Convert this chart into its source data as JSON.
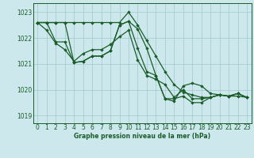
{
  "title": "Graphe pression niveau de la mer (hPa)",
  "bg_color": "#cce8ec",
  "grid_color": "#a0c8cc",
  "line_color": "#1a5c28",
  "xlim": [
    -0.5,
    23.5
  ],
  "ylim": [
    1018.7,
    1023.35
  ],
  "yticks": [
    1019,
    1020,
    1021,
    1022,
    1023
  ],
  "xticks": [
    0,
    1,
    2,
    3,
    4,
    5,
    6,
    7,
    8,
    9,
    10,
    11,
    12,
    13,
    14,
    15,
    16,
    17,
    18,
    19,
    20,
    21,
    22,
    23
  ],
  "series": [
    [
      1022.6,
      1022.6,
      1022.6,
      1022.6,
      1022.6,
      1022.6,
      1022.6,
      1022.6,
      1022.6,
      1022.6,
      1023.0,
      1022.5,
      1021.9,
      1021.3,
      1020.7,
      1020.2,
      1019.9,
      1019.8,
      1019.7,
      1019.7,
      1019.8,
      1019.75,
      1019.75,
      1019.7
    ],
    [
      1022.6,
      1022.3,
      1021.8,
      1021.55,
      1021.1,
      1021.4,
      1021.55,
      1021.55,
      1021.75,
      1022.05,
      1022.3,
      1021.15,
      1020.55,
      1020.4,
      1020.2,
      1019.7,
      1020.0,
      1019.65,
      1019.65,
      1019.7,
      1019.8,
      1019.75,
      1019.85,
      1019.7
    ],
    [
      1022.6,
      1022.6,
      1021.85,
      1021.85,
      1021.05,
      1021.1,
      1021.3,
      1021.3,
      1021.5,
      1022.5,
      1022.65,
      1022.35,
      1021.6,
      1020.55,
      1019.65,
      1019.65,
      1019.75,
      1019.5,
      1019.5,
      1019.7,
      1019.8,
      1019.75,
      1019.85,
      1019.7
    ],
    [
      1022.6,
      1022.6,
      1022.6,
      1022.6,
      1021.05,
      1021.1,
      1021.3,
      1021.3,
      1021.5,
      1022.5,
      1022.65,
      1021.6,
      1020.7,
      1020.55,
      1019.65,
      1019.55,
      1020.15,
      1020.25,
      1020.15,
      1019.85,
      1019.8,
      1019.75,
      1019.85,
      1019.7
    ]
  ]
}
